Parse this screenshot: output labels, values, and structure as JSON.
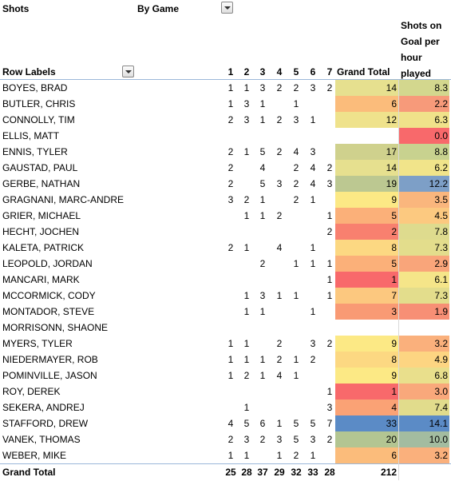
{
  "header": {
    "shots_label": "Shots",
    "by_game_label": "By Game",
    "row_labels": "Row Labels",
    "games": [
      "1",
      "2",
      "3",
      "4",
      "5",
      "6",
      "7"
    ],
    "grand_total": "Grand Total",
    "sog_lines": [
      "Shots on",
      "Goal per",
      "hour",
      "played"
    ]
  },
  "rows": [
    {
      "name": "BOYES, BRAD",
      "g": [
        "1",
        "1",
        "3",
        "2",
        "2",
        "3",
        "2"
      ],
      "total": "14",
      "total_color": "#e6e08f",
      "sog": "8.3",
      "sog_color": "#d3d78e"
    },
    {
      "name": "BUTLER, CHRIS",
      "g": [
        "1",
        "3",
        "1",
        "",
        "1",
        "",
        ""
      ],
      "total": "6",
      "total_color": "#fbbc7b",
      "sog": "2.2",
      "sog_color": "#f79a7a"
    },
    {
      "name": "CONNOLLY, TIM",
      "g": [
        "2",
        "3",
        "1",
        "2",
        "3",
        "1",
        ""
      ],
      "total": "12",
      "total_color": "#efe28c",
      "sog": "6.3",
      "sog_color": "#f0e28a"
    },
    {
      "name": "ELLIS, MATT",
      "g": [
        "",
        "",
        "",
        "",
        "",
        "",
        ""
      ],
      "total": "",
      "total_color": "",
      "sog": "0.0",
      "sog_color": "#f8696b"
    },
    {
      "name": "ENNIS, TYLER",
      "g": [
        "2",
        "1",
        "5",
        "2",
        "4",
        "3",
        ""
      ],
      "total": "17",
      "total_color": "#cfd18d",
      "sog": "8.8",
      "sog_color": "#c8d28f"
    },
    {
      "name": "GAUSTAD, PAUL",
      "g": [
        "2",
        "",
        "4",
        "",
        "2",
        "4",
        "2"
      ],
      "total": "14",
      "total_color": "#e6e08f",
      "sog": "6.2",
      "sog_color": "#f1e48a"
    },
    {
      "name": "GERBE, NATHAN",
      "g": [
        "2",
        "",
        "5",
        "3",
        "2",
        "4",
        "3"
      ],
      "total": "19",
      "total_color": "#bcc891",
      "sog": "12.2",
      "sog_color": "#7d9fc7"
    },
    {
      "name": "GRAGNANI, MARC-ANDRE",
      "g": [
        "3",
        "2",
        "1",
        "",
        "2",
        "1",
        ""
      ],
      "total": "9",
      "total_color": "#fce985",
      "sog": "3.5",
      "sog_color": "#fab67d"
    },
    {
      "name": "GRIER, MICHAEL",
      "g": [
        "",
        "1",
        "1",
        "2",
        "",
        "",
        "1"
      ],
      "total": "5",
      "total_color": "#fbb079",
      "sog": "4.5",
      "sog_color": "#fcc980"
    },
    {
      "name": "HECHT, JOCHEN",
      "g": [
        "",
        "",
        "",
        "",
        "",
        "",
        "2"
      ],
      "total": "2",
      "total_color": "#f8806f",
      "sog": "7.8",
      "sog_color": "#dedb8e"
    },
    {
      "name": "KALETA, PATRICK",
      "g": [
        "2",
        "1",
        "",
        "4",
        "",
        "1",
        ""
      ],
      "total": "8",
      "total_color": "#fcd882",
      "sog": "7.3",
      "sog_color": "#e3dd8c"
    },
    {
      "name": "LEOPOLD, JORDAN",
      "g": [
        "",
        "",
        "2",
        "",
        "1",
        "1",
        "1"
      ],
      "total": "5",
      "total_color": "#fbb079",
      "sog": "2.9",
      "sog_color": "#f9a57a"
    },
    {
      "name": "MANCARI, MARK",
      "g": [
        "",
        "",
        "",
        "",
        "",
        "",
        "1"
      ],
      "total": "1",
      "total_color": "#f8696b",
      "sog": "6.1",
      "sog_color": "#f5e589"
    },
    {
      "name": "MCCORMICK, CODY",
      "g": [
        "",
        "1",
        "3",
        "1",
        "1",
        "",
        "1"
      ],
      "total": "7",
      "total_color": "#fcc87f",
      "sog": "7.3",
      "sog_color": "#e3dd8c"
    },
    {
      "name": "MONTADOR, STEVE",
      "g": [
        "",
        "1",
        "1",
        "",
        "",
        "1",
        ""
      ],
      "total": "3",
      "total_color": "#f99a74",
      "sog": "1.9",
      "sog_color": "#f78f75"
    },
    {
      "name": "MORRISONN, SHAONE",
      "g": [
        "",
        "",
        "",
        "",
        "",
        "",
        ""
      ],
      "total": "",
      "total_color": "",
      "sog": "",
      "sog_color": ""
    },
    {
      "name": "MYERS, TYLER",
      "g": [
        "1",
        "1",
        "",
        "2",
        "",
        "3",
        "2"
      ],
      "total": "9",
      "total_color": "#fce985",
      "sog": "3.2",
      "sog_color": "#fab07c"
    },
    {
      "name": "NIEDERMAYER, ROB",
      "g": [
        "1",
        "1",
        "1",
        "2",
        "1",
        "2",
        ""
      ],
      "total": "8",
      "total_color": "#fcd882",
      "sog": "4.9",
      "sog_color": "#fdd582"
    },
    {
      "name": "POMINVILLE, JASON",
      "g": [
        "1",
        "2",
        "1",
        "4",
        "1",
        "",
        ""
      ],
      "total": "9",
      "total_color": "#fce985",
      "sog": "6.8",
      "sog_color": "#e9df8c"
    },
    {
      "name": "ROY, DEREK",
      "g": [
        "",
        "",
        "",
        "",
        "",
        "",
        "1"
      ],
      "total": "1",
      "total_color": "#f8696b",
      "sog": "3.0",
      "sog_color": "#f9a87b"
    },
    {
      "name": "SEKERA, ANDREJ",
      "g": [
        "",
        "1",
        "",
        "",
        "",
        "",
        "3"
      ],
      "total": "4",
      "total_color": "#faa275",
      "sog": "7.4",
      "sog_color": "#e1dc8c"
    },
    {
      "name": "STAFFORD, DREW",
      "g": [
        "4",
        "5",
        "6",
        "1",
        "5",
        "5",
        "7"
      ],
      "total": "33",
      "total_color": "#5b8bc6",
      "sog": "14.1",
      "sog_color": "#5b8bc6"
    },
    {
      "name": "VANEK, THOMAS",
      "g": [
        "2",
        "3",
        "2",
        "3",
        "5",
        "3",
        "2"
      ],
      "total": "20",
      "total_color": "#b3c592",
      "sog": "10.0",
      "sog_color": "#a3bca0"
    },
    {
      "name": "WEBER, MIKE",
      "g": [
        "1",
        "1",
        "",
        "1",
        "2",
        "1",
        ""
      ],
      "total": "6",
      "total_color": "#fbbc7b",
      "sog": "3.2",
      "sog_color": "#fab07c"
    }
  ],
  "totals": {
    "label": "Grand Total",
    "g": [
      "25",
      "28",
      "37",
      "29",
      "32",
      "33",
      "28"
    ],
    "total": "212"
  }
}
